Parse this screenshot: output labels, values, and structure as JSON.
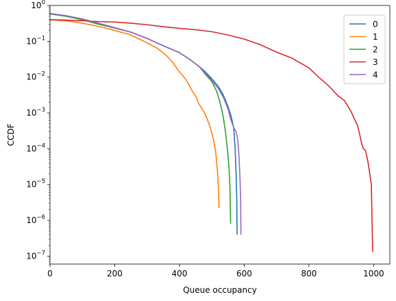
{
  "chart_data": {
    "type": "line",
    "title": "",
    "xlabel": "Queue occupancy",
    "ylabel": "CCDF",
    "xlim": [
      0,
      1050
    ],
    "ylim": [
      6e-08,
      1
    ],
    "yscale": "log",
    "grid": false,
    "legend_placement": "top-right",
    "x_ticks": [
      {
        "value": 0,
        "label": "0"
      },
      {
        "value": 200,
        "label": "200"
      },
      {
        "value": 400,
        "label": "400"
      },
      {
        "value": 600,
        "label": "600"
      },
      {
        "value": 800,
        "label": "800"
      },
      {
        "value": 1000,
        "label": "1000"
      }
    ],
    "y_ticks": [
      {
        "value": 1,
        "mantissa": "10",
        "exponent": "0"
      },
      {
        "value": 0.1,
        "mantissa": "10",
        "exponent": "−1"
      },
      {
        "value": 0.01,
        "mantissa": "10",
        "exponent": "−2"
      },
      {
        "value": 0.001,
        "mantissa": "10",
        "exponent": "−3"
      },
      {
        "value": 0.0001,
        "mantissa": "10",
        "exponent": "−4"
      },
      {
        "value": 1e-05,
        "mantissa": "10",
        "exponent": "−5"
      },
      {
        "value": 1e-06,
        "mantissa": "10",
        "exponent": "−6"
      },
      {
        "value": 1e-07,
        "mantissa": "10",
        "exponent": "−7"
      }
    ],
    "series": [
      {
        "name": "0",
        "color": "#1f77b4",
        "points": [
          [
            0,
            0.58
          ],
          [
            50,
            0.5
          ],
          [
            100,
            0.4
          ],
          [
            150,
            0.3
          ],
          [
            200,
            0.235
          ],
          [
            250,
            0.18
          ],
          [
            300,
            0.12
          ],
          [
            350,
            0.075
          ],
          [
            400,
            0.048
          ],
          [
            430,
            0.032
          ],
          [
            460,
            0.02
          ],
          [
            480,
            0.014
          ],
          [
            500,
            0.009
          ],
          [
            520,
            0.0055
          ],
          [
            535,
            0.0032
          ],
          [
            550,
            0.0015
          ],
          [
            558,
            0.0009
          ],
          [
            563,
            0.0006
          ],
          [
            568,
            0.00035
          ],
          [
            572,
            0.0001
          ],
          [
            575,
            2e-05
          ],
          [
            577,
            4e-06
          ],
          [
            578,
            4e-07
          ]
        ]
      },
      {
        "name": "1",
        "color": "#ff7f0e",
        "points": [
          [
            0,
            0.4
          ],
          [
            50,
            0.37
          ],
          [
            100,
            0.32
          ],
          [
            150,
            0.26
          ],
          [
            200,
            0.2
          ],
          [
            250,
            0.15
          ],
          [
            300,
            0.09
          ],
          [
            330,
            0.065
          ],
          [
            360,
            0.04
          ],
          [
            380,
            0.025
          ],
          [
            400,
            0.014
          ],
          [
            420,
            0.0085
          ],
          [
            440,
            0.004
          ],
          [
            450,
            0.003
          ],
          [
            460,
            0.0018
          ],
          [
            475,
            0.0011
          ],
          [
            485,
            0.0007
          ],
          [
            495,
            0.0004
          ],
          [
            505,
            0.00018
          ],
          [
            512,
            8e-05
          ],
          [
            518,
            2e-05
          ],
          [
            521,
            6e-06
          ],
          [
            522,
            2.2e-06
          ]
        ]
      },
      {
        "name": "2",
        "color": "#2ca02c",
        "points": [
          [
            0,
            0.58
          ],
          [
            50,
            0.5
          ],
          [
            100,
            0.4
          ],
          [
            150,
            0.3
          ],
          [
            200,
            0.235
          ],
          [
            250,
            0.18
          ],
          [
            300,
            0.12
          ],
          [
            350,
            0.075
          ],
          [
            400,
            0.048
          ],
          [
            430,
            0.032
          ],
          [
            460,
            0.02
          ],
          [
            480,
            0.012
          ],
          [
            500,
            0.0075
          ],
          [
            515,
            0.004
          ],
          [
            525,
            0.002
          ],
          [
            535,
            0.0008
          ],
          [
            542,
            0.0003
          ],
          [
            548,
            0.0001
          ],
          [
            553,
            3e-05
          ],
          [
            556,
            8e-06
          ],
          [
            558,
            8e-07
          ]
        ]
      },
      {
        "name": "3",
        "color": "#d62728",
        "points": [
          [
            0,
            0.4
          ],
          [
            50,
            0.39
          ],
          [
            100,
            0.375
          ],
          [
            150,
            0.355
          ],
          [
            200,
            0.345
          ],
          [
            250,
            0.32
          ],
          [
            300,
            0.29
          ],
          [
            350,
            0.255
          ],
          [
            400,
            0.23
          ],
          [
            450,
            0.21
          ],
          [
            500,
            0.185
          ],
          [
            550,
            0.15
          ],
          [
            600,
            0.115
          ],
          [
            650,
            0.08
          ],
          [
            700,
            0.05
          ],
          [
            750,
            0.033
          ],
          [
            800,
            0.018
          ],
          [
            830,
            0.01
          ],
          [
            860,
            0.0058
          ],
          [
            890,
            0.003
          ],
          [
            910,
            0.0022
          ],
          [
            930,
            0.0011
          ],
          [
            940,
            0.0007
          ],
          [
            950,
            0.00045
          ],
          [
            957,
            0.00025
          ],
          [
            962,
            0.00015
          ],
          [
            968,
            0.0001
          ],
          [
            975,
            9e-05
          ],
          [
            983,
            4e-05
          ],
          [
            988,
            2e-05
          ],
          [
            993,
            1e-05
          ],
          [
            995,
            1e-06
          ],
          [
            997,
            1.3e-07
          ]
        ]
      },
      {
        "name": "4",
        "color": "#9467bd",
        "points": [
          [
            0,
            0.6
          ],
          [
            50,
            0.52
          ],
          [
            100,
            0.42
          ],
          [
            150,
            0.32
          ],
          [
            200,
            0.24
          ],
          [
            250,
            0.18
          ],
          [
            300,
            0.12
          ],
          [
            350,
            0.075
          ],
          [
            400,
            0.048
          ],
          [
            430,
            0.032
          ],
          [
            460,
            0.02
          ],
          [
            480,
            0.013
          ],
          [
            500,
            0.008
          ],
          [
            520,
            0.0048
          ],
          [
            535,
            0.0028
          ],
          [
            550,
            0.0013
          ],
          [
            560,
            0.0006
          ],
          [
            568,
            0.00038
          ],
          [
            575,
            0.0003
          ],
          [
            580,
            0.00018
          ],
          [
            584,
            6e-05
          ],
          [
            587,
            1.5e-05
          ],
          [
            589,
            4e-06
          ],
          [
            590,
            4e-07
          ]
        ]
      }
    ]
  }
}
